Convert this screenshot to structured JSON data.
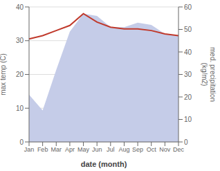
{
  "chart_data": {
    "type": "line",
    "categories": [
      "Jan",
      "Feb",
      "Mar",
      "Apr",
      "May",
      "Jun",
      "Jul",
      "Aug",
      "Sep",
      "Oct",
      "Nov",
      "Dec"
    ],
    "series": [
      {
        "type": "area",
        "axis": "y2",
        "color": "#c5cce8",
        "values": [
          21,
          14,
          32,
          49,
          57,
          56,
          51,
          51,
          53,
          52,
          48,
          47
        ]
      },
      {
        "type": "line",
        "color": "#c0392b",
        "values": [
          30.5,
          31.5,
          33.0,
          34.5,
          38.0,
          35.5,
          34.0,
          33.5,
          33.5,
          33.0,
          32.0,
          31.5
        ]
      }
    ],
    "xlabel": "date (month)",
    "ylabel": "max temp (C)",
    "y2label": "med. precipitation\n(kg/m2)",
    "ylim": [
      0,
      40
    ],
    "yticks": [
      0,
      10,
      20,
      30,
      40
    ],
    "y2lim": [
      0,
      60
    ],
    "y2ticks": [
      0,
      10,
      20,
      30,
      40,
      50,
      60
    ],
    "grid": true
  }
}
